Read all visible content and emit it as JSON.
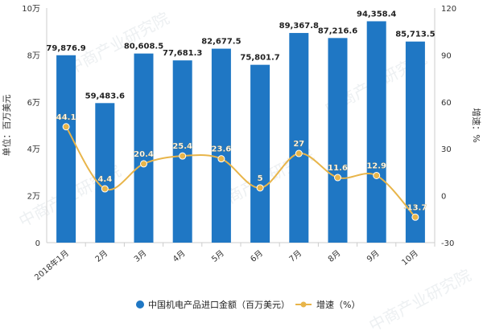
{
  "chart_data": {
    "type": "bar",
    "categories": [
      "2018年1月",
      "2月",
      "3月",
      "4月",
      "5月",
      "6月",
      "7月",
      "8月",
      "9月",
      "10月"
    ],
    "series": [
      {
        "name": "中国机电产品进口金额（百万美元）",
        "type": "bar",
        "axis": "left",
        "values": [
          79876.9,
          59483.6,
          80608.5,
          77681.3,
          82677.5,
          75801.7,
          89367.8,
          87216.6,
          94358.4,
          85713.5
        ],
        "labels": [
          "79,876.9",
          "59,483.6",
          "80,608.5",
          "77,681.3",
          "82,677.5",
          "75,801.7",
          "89,367.8",
          "87,216.6",
          "94,358.4",
          "85,713.5"
        ]
      },
      {
        "name": "增速（%）",
        "type": "line",
        "axis": "right",
        "values": [
          44.1,
          4.4,
          20.4,
          25.4,
          23.6,
          5,
          27,
          11.6,
          12.9,
          -13.7
        ],
        "labels": [
          "44.1",
          "4.4",
          "20.4",
          "25.4",
          "23.6",
          "5",
          "27",
          "11.6",
          "12.9",
          "-13.7"
        ]
      }
    ],
    "left_axis": {
      "label": "单位：百万美元",
      "ylim": [
        0,
        100000
      ],
      "ticks": [
        0,
        20000,
        40000,
        60000,
        80000,
        100000
      ],
      "tick_labels": [
        "0",
        "2万",
        "4万",
        "6万",
        "8万",
        "10万"
      ]
    },
    "right_axis": {
      "label": "增速：%",
      "ylim": [
        -30,
        120
      ],
      "ticks": [
        -30,
        0,
        30,
        60,
        90,
        120
      ],
      "tick_labels": [
        "-30",
        "0",
        "30",
        "60",
        "90",
        "120"
      ]
    },
    "grid": false,
    "legend_position": "bottom",
    "colors": {
      "bar": "#1f77c4",
      "line": "#e8b54a",
      "line_marker_fill": "#e8b54a"
    }
  },
  "legend": {
    "bar_label": "中国机电产品进口金额（百万美元）",
    "line_label": "增速（%）"
  },
  "watermark": "中商产业研究院"
}
